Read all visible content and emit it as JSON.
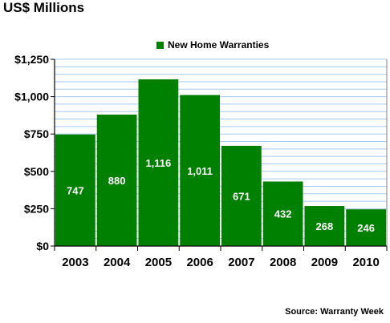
{
  "chart_data": {
    "type": "bar",
    "title": "US$ Millions",
    "categories": [
      "2003",
      "2004",
      "2005",
      "2006",
      "2007",
      "2008",
      "2009",
      "2010"
    ],
    "series": [
      {
        "name": "New Home Warranties",
        "values": [
          747,
          880,
          1116,
          1011,
          671,
          432,
          268,
          246
        ]
      }
    ],
    "data_labels": [
      "747",
      "880",
      "1,116",
      "1,011",
      "671",
      "432",
      "268",
      "246"
    ],
    "ylim": [
      0,
      1250
    ],
    "yticks": [
      0,
      250,
      500,
      750,
      1000,
      1250
    ],
    "ytick_labels": [
      "$0",
      "$250",
      "$500",
      "$750",
      "$1,000",
      "$1,250"
    ],
    "grid": true,
    "legend_position": "top-center",
    "bar_color": "#008000",
    "grid_color": "#a6caf0",
    "source": "Source: Warranty Week"
  }
}
